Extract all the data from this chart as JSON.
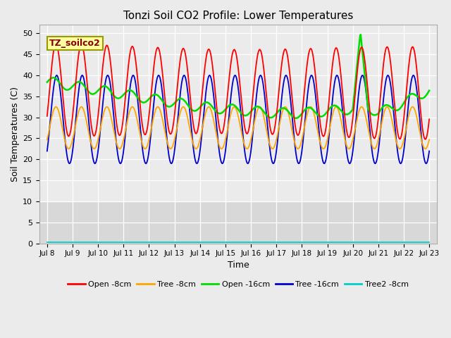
{
  "title": "Tonzi Soil CO2 Profile: Lower Temperatures",
  "xlabel": "Time",
  "ylabel": "Soil Temperatures (C)",
  "annotation": "TZ_soilco2",
  "ylim": [
    0,
    52
  ],
  "yticks": [
    0,
    5,
    10,
    15,
    20,
    25,
    30,
    35,
    40,
    45,
    50
  ],
  "xtick_labels": [
    "Jul 8",
    "Jul 9",
    "Jul 10",
    "Jul 11",
    "Jul 12",
    "Jul 13",
    "Jul 14",
    "Jul 15",
    "Jul 16",
    "Jul 17",
    "Jul 18",
    "Jul 19",
    "Jul 20",
    "Jul 21",
    "Jul 22",
    "Jul 23"
  ],
  "colors": {
    "open8": "#FF0000",
    "tree8": "#FFA500",
    "open16": "#00DD00",
    "tree16": "#0000CC",
    "tree2_8": "#00CCCC"
  },
  "legend_labels": [
    "Open -8cm",
    "Tree -8cm",
    "Open -16cm",
    "Tree -16cm",
    "Tree2 -8cm"
  ],
  "bg_upper": "#EBEBEB",
  "bg_lower": "#E0E0E0",
  "grid_color": "#FFFFFF",
  "n_points": 720
}
